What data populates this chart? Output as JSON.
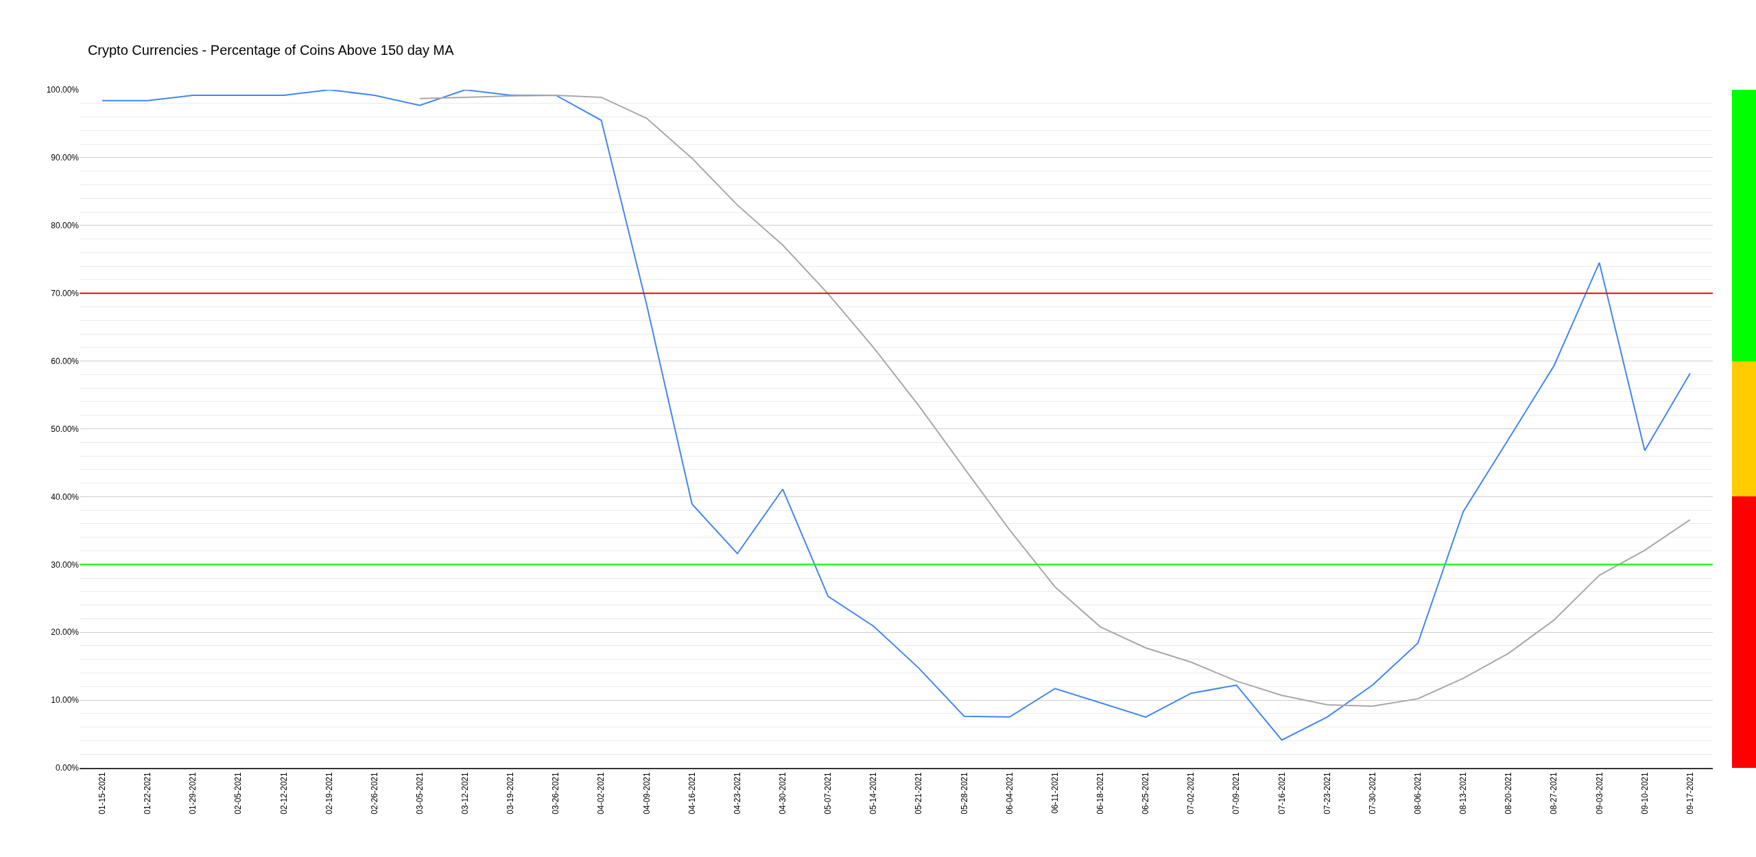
{
  "chart_data": [
    {
      "type": "line",
      "title": "Crypto Currencies - Percentage of Coins Above 150 day MA",
      "categories": [
        "01-15-2021",
        "01-22-2021",
        "01-29-2021",
        "02-05-2021",
        "02-12-2021",
        "02-19-2021",
        "02-26-2021",
        "03-05-2021",
        "03-12-2021",
        "03-19-2021",
        "03-26-2021",
        "04-02-2021",
        "04-09-2021",
        "04-16-2021",
        "04-23-2021",
        "04-30-2021",
        "05-07-2021",
        "05-14-2021",
        "05-21-2021",
        "05-28-2021",
        "06-04-2021",
        "06-11-2021",
        "06-18-2021",
        "06-25-2021",
        "07-02-2021",
        "07-09-2021",
        "07-16-2021",
        "07-23-2021",
        "07-30-2021",
        "08-06-2021",
        "08-13-2021",
        "08-20-2021",
        "08-27-2021",
        "09-03-2021",
        "09-10-2021",
        "09-17-2021"
      ],
      "series": [
        {
          "color": "#4285f4",
          "values": [
            98.4,
            98.4,
            99.2,
            99.2,
            99.2,
            100,
            99.2,
            97.7,
            100,
            99.2,
            99.2,
            95.5,
            68.3,
            38.9,
            31.6,
            41.1,
            25.3,
            20.9,
            14.7,
            7.6,
            7.5,
            11.7,
            9.6,
            7.5,
            11.0,
            12.2,
            4.1,
            7.5,
            12.2,
            18.4,
            37.8,
            48.5,
            59.3,
            74.5,
            46.8,
            58.2
          ]
        },
        {
          "color": "#a8a8a8",
          "values": [
            null,
            null,
            null,
            null,
            null,
            null,
            null,
            98.7,
            98.9,
            99.1,
            99.2,
            98.9,
            95.8,
            89.9,
            83.0,
            77.1,
            69.9,
            62.0,
            53.4,
            44.2,
            35.1,
            26.7,
            20.8,
            17.7,
            15.6,
            12.8,
            10.7,
            9.3,
            9.1,
            10.2,
            13.2,
            16.9,
            21.8,
            28.4,
            32.1,
            36.6
          ]
        }
      ],
      "ylim": [
        0,
        100
      ],
      "yticks": [
        {
          "value": 0,
          "label": "0.00%"
        },
        {
          "value": 2,
          "label": null
        },
        {
          "value": 4,
          "label": null
        },
        {
          "value": 6,
          "label": null
        },
        {
          "value": 8,
          "label": null
        },
        {
          "value": 10,
          "label": "10.00%"
        },
        {
          "value": 12,
          "label": null
        },
        {
          "value": 14,
          "label": null
        },
        {
          "value": 16,
          "label": null
        },
        {
          "value": 18,
          "label": null
        },
        {
          "value": 20,
          "label": "20.00%"
        },
        {
          "value": 22,
          "label": null
        },
        {
          "value": 24,
          "label": null
        },
        {
          "value": 26,
          "label": null
        },
        {
          "value": 28,
          "label": null
        },
        {
          "value": 30,
          "label": "30.00%"
        },
        {
          "value": 32,
          "label": null
        },
        {
          "value": 34,
          "label": null
        },
        {
          "value": 36,
          "label": null
        },
        {
          "value": 38,
          "label": null
        },
        {
          "value": 40,
          "label": "40.00%"
        },
        {
          "value": 42,
          "label": null
        },
        {
          "value": 44,
          "label": null
        },
        {
          "value": 46,
          "label": null
        },
        {
          "value": 48,
          "label": null
        },
        {
          "value": 50,
          "label": "50.00%"
        },
        {
          "value": 52,
          "label": null
        },
        {
          "value": 54,
          "label": null
        },
        {
          "value": 56,
          "label": null
        },
        {
          "value": 58,
          "label": null
        },
        {
          "value": 60,
          "label": "60.00%"
        },
        {
          "value": 62,
          "label": null
        },
        {
          "value": 64,
          "label": null
        },
        {
          "value": 66,
          "label": null
        },
        {
          "value": 68,
          "label": null
        },
        {
          "value": 70,
          "label": "70.00%"
        },
        {
          "value": 72,
          "label": null
        },
        {
          "value": 74,
          "label": null
        },
        {
          "value": 76,
          "label": null
        },
        {
          "value": 78,
          "label": null
        },
        {
          "value": 80,
          "label": "80.00%"
        },
        {
          "value": 82,
          "label": null
        },
        {
          "value": 84,
          "label": null
        },
        {
          "value": 86,
          "label": null
        },
        {
          "value": 88,
          "label": null
        },
        {
          "value": 90,
          "label": "90.00%"
        },
        {
          "value": 92,
          "label": null
        },
        {
          "value": 94,
          "label": null
        },
        {
          "value": 96,
          "label": null
        },
        {
          "value": 98,
          "label": null
        },
        {
          "value": 100,
          "label": "100.00%"
        }
      ],
      "ref_lines": [
        {
          "axis": "y",
          "value": 70,
          "color": "#ff0000"
        },
        {
          "axis": "y",
          "value": 30,
          "color": "#00ff00"
        }
      ],
      "grid": "y"
    },
    {
      "type": "bar",
      "stacked": true,
      "categories": [
        null
      ],
      "series": [
        {
          "color": "#ff0000",
          "values": [
            40
          ]
        },
        {
          "color": "#ffcc00",
          "values": [
            20
          ]
        },
        {
          "color": "#00ff00",
          "values": [
            40
          ]
        }
      ],
      "ylim": [
        0,
        100
      ],
      "tick_labels": false
    }
  ]
}
